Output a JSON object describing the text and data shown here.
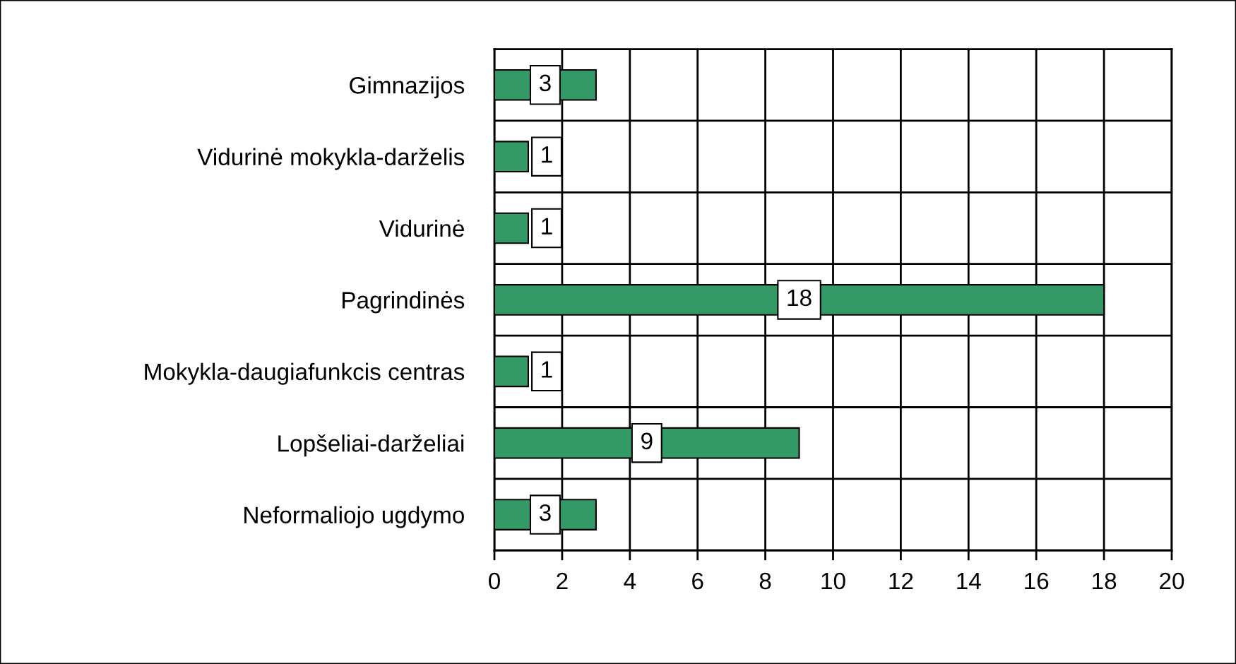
{
  "chart_data": {
    "type": "bar",
    "orientation": "horizontal",
    "categories": [
      "Gimnazijos",
      "Vidurinė mokykla-darželis",
      "Vidurinė",
      "Pagrindinės",
      "Mokykla-daugiafunkcis centras",
      "Lopšeliai-darželiai",
      "Neformaliojo ugdymo"
    ],
    "values": [
      3,
      1,
      1,
      18,
      1,
      9,
      3
    ],
    "color": "#339966",
    "xlim": [
      0,
      20
    ],
    "xticks": [
      0,
      2,
      4,
      6,
      8,
      10,
      12,
      14,
      16,
      18,
      20
    ],
    "grid": true,
    "data_labels": true
  }
}
